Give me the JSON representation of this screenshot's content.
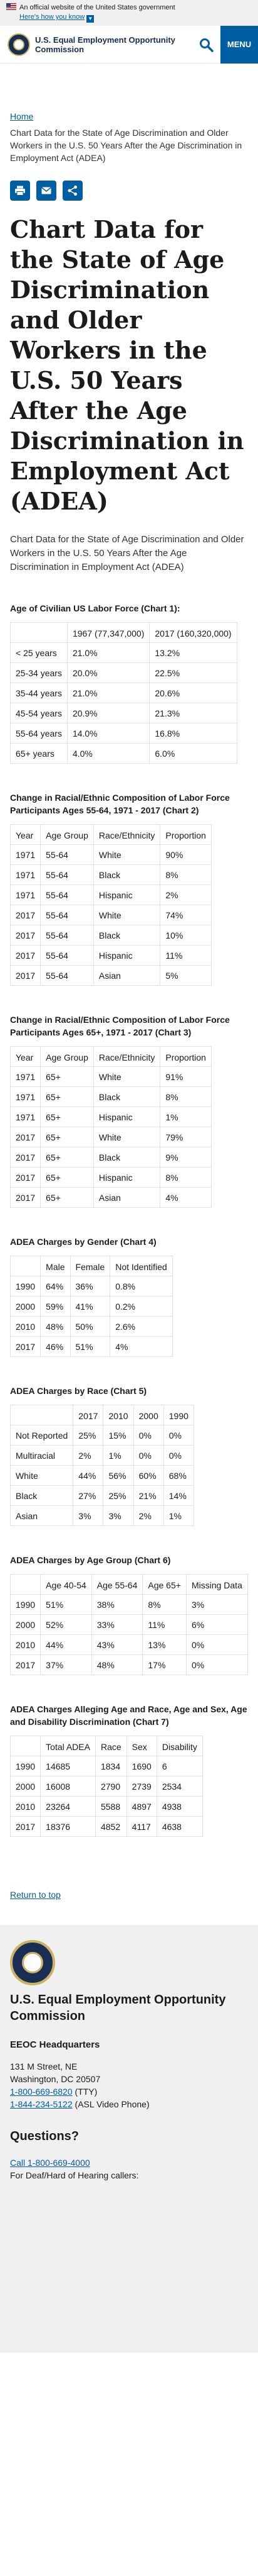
{
  "banner": {
    "official": "An official website of the United States government",
    "know": "Here's how you know"
  },
  "header": {
    "agency": "U.S. Equal Employment Opportunity Commission",
    "menu_label": "MENU"
  },
  "breadcrumb": {
    "home": "Home",
    "current": "Chart Data for the State of Age Discrimination and Older Workers in the U.S. 50 Years After the Age Discrimination in Employment Act (ADEA)"
  },
  "page": {
    "title": "Chart Data for the State of Age Discrimination and Older Workers in the U.S. 50 Years After the Age Discrimination in Employment Act (ADEA)",
    "lead": "Chart Data for the State of Age Discrimination and Older Workers in the U.S. 50 Years After the Age Discrimination in Employment Act (ADEA)"
  },
  "tables": [
    {
      "title": "Age of Civilian US Labor Force (Chart 1):",
      "headers": [
        "",
        "1967 (77,347,000)",
        "2017 (160,320,000)"
      ],
      "rows": [
        [
          "< 25 years",
          "21.0%",
          "13.2%"
        ],
        [
          "25-34 years",
          "20.0%",
          "22.5%"
        ],
        [
          "35-44 years",
          "21.0%",
          "20.6%"
        ],
        [
          "45-54 years",
          "20.9%",
          "21.3%"
        ],
        [
          "55-64 years",
          "14.0%",
          "16.8%"
        ],
        [
          "65+ years",
          "4.0%",
          "6.0%"
        ]
      ]
    },
    {
      "title": "Change in Racial/Ethnic Composition of Labor Force Participants Ages 55-64, 1971 - 2017 (Chart 2)",
      "headers": [
        "Year",
        "Age Group",
        "Race/Ethnicity",
        "Proportion"
      ],
      "rows": [
        [
          "1971",
          "55-64",
          "White",
          "90%"
        ],
        [
          "1971",
          "55-64",
          "Black",
          "8%"
        ],
        [
          "1971",
          "55-64",
          "Hispanic",
          "2%"
        ],
        [
          "2017",
          "55-64",
          "White",
          "74%"
        ],
        [
          "2017",
          "55-64",
          "Black",
          "10%"
        ],
        [
          "2017",
          "55-64",
          "Hispanic",
          "11%"
        ],
        [
          "2017",
          "55-64",
          "Asian",
          "5%"
        ]
      ]
    },
    {
      "title": "Change in Racial/Ethnic Composition of Labor Force Participants Ages 65+, 1971 - 2017 (Chart 3)",
      "headers": [
        "Year",
        "Age Group",
        "Race/Ethnicity",
        "Proportion"
      ],
      "rows": [
        [
          "1971",
          "65+",
          "White",
          "91%"
        ],
        [
          "1971",
          "65+",
          "Black",
          "8%"
        ],
        [
          "1971",
          "65+",
          "Hispanic",
          "1%"
        ],
        [
          "2017",
          "65+",
          "White",
          "79%"
        ],
        [
          "2017",
          "65+",
          "Black",
          "9%"
        ],
        [
          "2017",
          "65+",
          "Hispanic",
          "8%"
        ],
        [
          "2017",
          "65+",
          "Asian",
          "4%"
        ]
      ]
    },
    {
      "title": "ADEA Charges by Gender (Chart 4)",
      "headers": [
        "",
        "Male",
        "Female",
        "Not Identified"
      ],
      "rows": [
        [
          "1990",
          "64%",
          "36%",
          "0.8%"
        ],
        [
          "2000",
          "59%",
          "41%",
          "0.2%"
        ],
        [
          "2010",
          "48%",
          "50%",
          "2.6%"
        ],
        [
          "2017",
          "46%",
          "51%",
          "4%"
        ]
      ]
    },
    {
      "title": "ADEA Charges by Race (Chart 5)",
      "headers": [
        "",
        "2017",
        "2010",
        "2000",
        "1990"
      ],
      "rows": [
        [
          "Not Reported",
          "25%",
          "15%",
          "0%",
          "0%"
        ],
        [
          "Multiracial",
          "2%",
          "1%",
          "0%",
          "0%"
        ],
        [
          "White",
          "44%",
          "56%",
          "60%",
          "68%"
        ],
        [
          "Black",
          "27%",
          "25%",
          "21%",
          "14%"
        ],
        [
          "Asian",
          "3%",
          "3%",
          "2%",
          "1%"
        ]
      ]
    },
    {
      "title": "ADEA Charges by Age Group (Chart 6)",
      "headers": [
        "",
        "Age 40-54",
        "Age 55-64",
        "Age 65+",
        "Missing Data"
      ],
      "rows": [
        [
          "1990",
          "51%",
          "38%",
          "8%",
          "3%"
        ],
        [
          "2000",
          "52%",
          "33%",
          "11%",
          "6%"
        ],
        [
          "2010",
          "44%",
          "43%",
          "13%",
          "0%"
        ],
        [
          "2017",
          "37%",
          "48%",
          "17%",
          "0%"
        ]
      ]
    },
    {
      "title": "ADEA Charges Alleging Age and Race, Age and Sex, Age and Disability Discrimination (Chart 7)",
      "headers": [
        "",
        "Total ADEA",
        "Race",
        "Sex",
        "Disability"
      ],
      "rows": [
        [
          "1990",
          "14685",
          "1834",
          "1690",
          "6"
        ],
        [
          "2000",
          "16008",
          "2790",
          "2739",
          "2534"
        ],
        [
          "2010",
          "23264",
          "5588",
          "4897",
          "4938"
        ],
        [
          "2017",
          "18376",
          "4852",
          "4117",
          "4638"
        ]
      ]
    }
  ],
  "return_top": "Return to top",
  "footer": {
    "agency": "U.S. Equal Employment Opportunity Commission",
    "hq_title": "EEOC Headquarters",
    "address_1": "131 M Street, NE",
    "address_2": "Washington, DC 20507",
    "phone_tty": "1-800-669-6820",
    "phone_tty_suffix": " (TTY)",
    "phone_asl": "1-844-234-5122",
    "phone_asl_suffix": " (ASL Video Phone)",
    "questions": "Questions?",
    "call": "Call 1-800-669-4000",
    "deaf": "For Deaf/Hard of Hearing callers:"
  }
}
